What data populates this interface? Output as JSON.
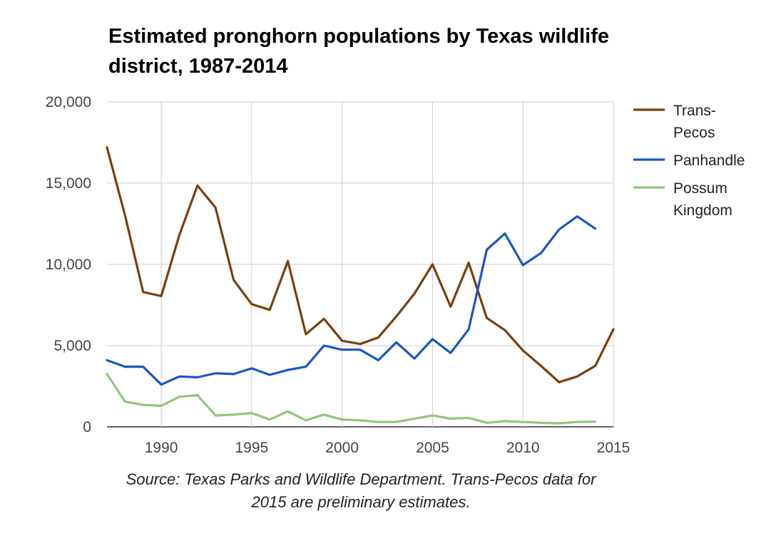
{
  "chart_data": {
    "type": "line",
    "title": "Estimated pronghorn populations by Texas wildlife district, 1987-2014",
    "source_note": "Source: Texas Parks and Wildlife Department. Trans-Pecos data for 2015 are preliminary estimates.",
    "xlim": [
      1987,
      2015
    ],
    "ylim": [
      0,
      20000
    ],
    "x_ticks": [
      1990,
      1995,
      2000,
      2005,
      2010,
      2015
    ],
    "x_tick_labels": [
      "1990",
      "1995",
      "2000",
      "2005",
      "2010",
      "2015"
    ],
    "y_ticks": [
      0,
      5000,
      10000,
      15000,
      20000
    ],
    "y_tick_labels": [
      "0",
      "5,000",
      "10,000",
      "15,000",
      "20,000"
    ],
    "grid": true,
    "legend_position": "right",
    "series": [
      {
        "name": "Trans-Pecos",
        "legend_lines": [
          "Trans-",
          "Pecos"
        ],
        "color": "#7a3f0c",
        "x": [
          1987,
          1988,
          1989,
          1990,
          1991,
          1992,
          1993,
          1994,
          1995,
          1996,
          1997,
          1998,
          1999,
          2000,
          2001,
          2002,
          2003,
          2004,
          2005,
          2006,
          2007,
          2008,
          2009,
          2010,
          2011,
          2012,
          2013,
          2014,
          2015
        ],
        "values": [
          17200,
          13000,
          8300,
          8050,
          11800,
          14850,
          13500,
          9050,
          7550,
          7200,
          10200,
          5700,
          6650,
          5300,
          5100,
          5500,
          6800,
          8200,
          10000,
          7400,
          10100,
          6700,
          5950,
          4700,
          3750,
          2750,
          3100,
          3750,
          6000
        ]
      },
      {
        "name": "Panhandle",
        "legend_lines": [
          "Panhandle"
        ],
        "color": "#1a56c7",
        "x": [
          1987,
          1988,
          1989,
          1990,
          1991,
          1992,
          1993,
          1994,
          1995,
          1996,
          1997,
          1998,
          1999,
          2000,
          2001,
          2002,
          2003,
          2004,
          2005,
          2006,
          2007,
          2008,
          2009,
          2010,
          2011,
          2012,
          2013,
          2014
        ],
        "values": [
          4100,
          3700,
          3700,
          2600,
          3100,
          3050,
          3300,
          3250,
          3600,
          3200,
          3500,
          3700,
          5000,
          4750,
          4750,
          4100,
          5200,
          4200,
          5400,
          4550,
          6000,
          10900,
          11900,
          9950,
          10700,
          12150,
          12950,
          12200
        ]
      },
      {
        "name": "Possum Kingdom",
        "legend_lines": [
          "Possum",
          "Kingdom"
        ],
        "color": "#8dc87a",
        "x": [
          1987,
          1988,
          1989,
          1990,
          1991,
          1992,
          1993,
          1994,
          1995,
          1996,
          1997,
          1998,
          1999,
          2000,
          2001,
          2002,
          2003,
          2004,
          2005,
          2006,
          2007,
          2008,
          2009,
          2010,
          2011,
          2012,
          2013,
          2014
        ],
        "values": [
          3250,
          1550,
          1350,
          1300,
          1850,
          1950,
          700,
          750,
          850,
          450,
          950,
          400,
          750,
          450,
          400,
          300,
          300,
          500,
          700,
          500,
          550,
          250,
          350,
          300,
          250,
          220,
          300,
          320
        ]
      }
    ]
  }
}
